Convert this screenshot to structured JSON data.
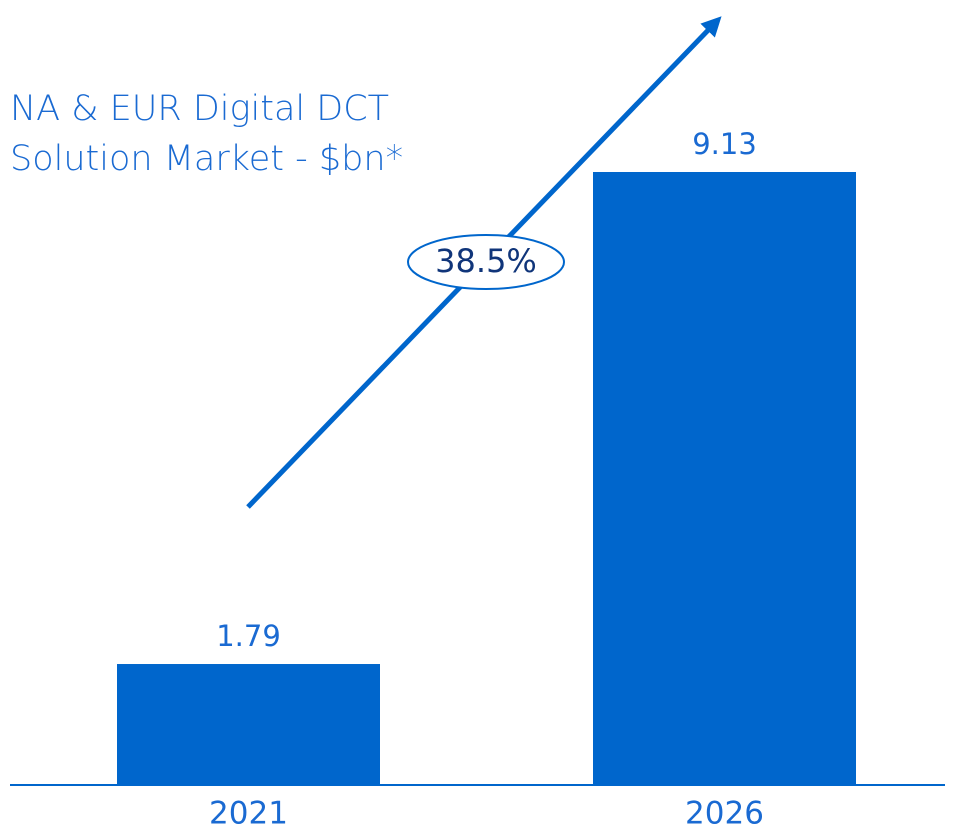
{
  "chart_data": {
    "type": "bar",
    "title": "NA & EUR Digital DCT Solution Market - $bn*",
    "categories": [
      "2021",
      "2026"
    ],
    "values": [
      1.79,
      9.13
    ],
    "color": "#0066cc",
    "annotation": "38.5%"
  }
}
